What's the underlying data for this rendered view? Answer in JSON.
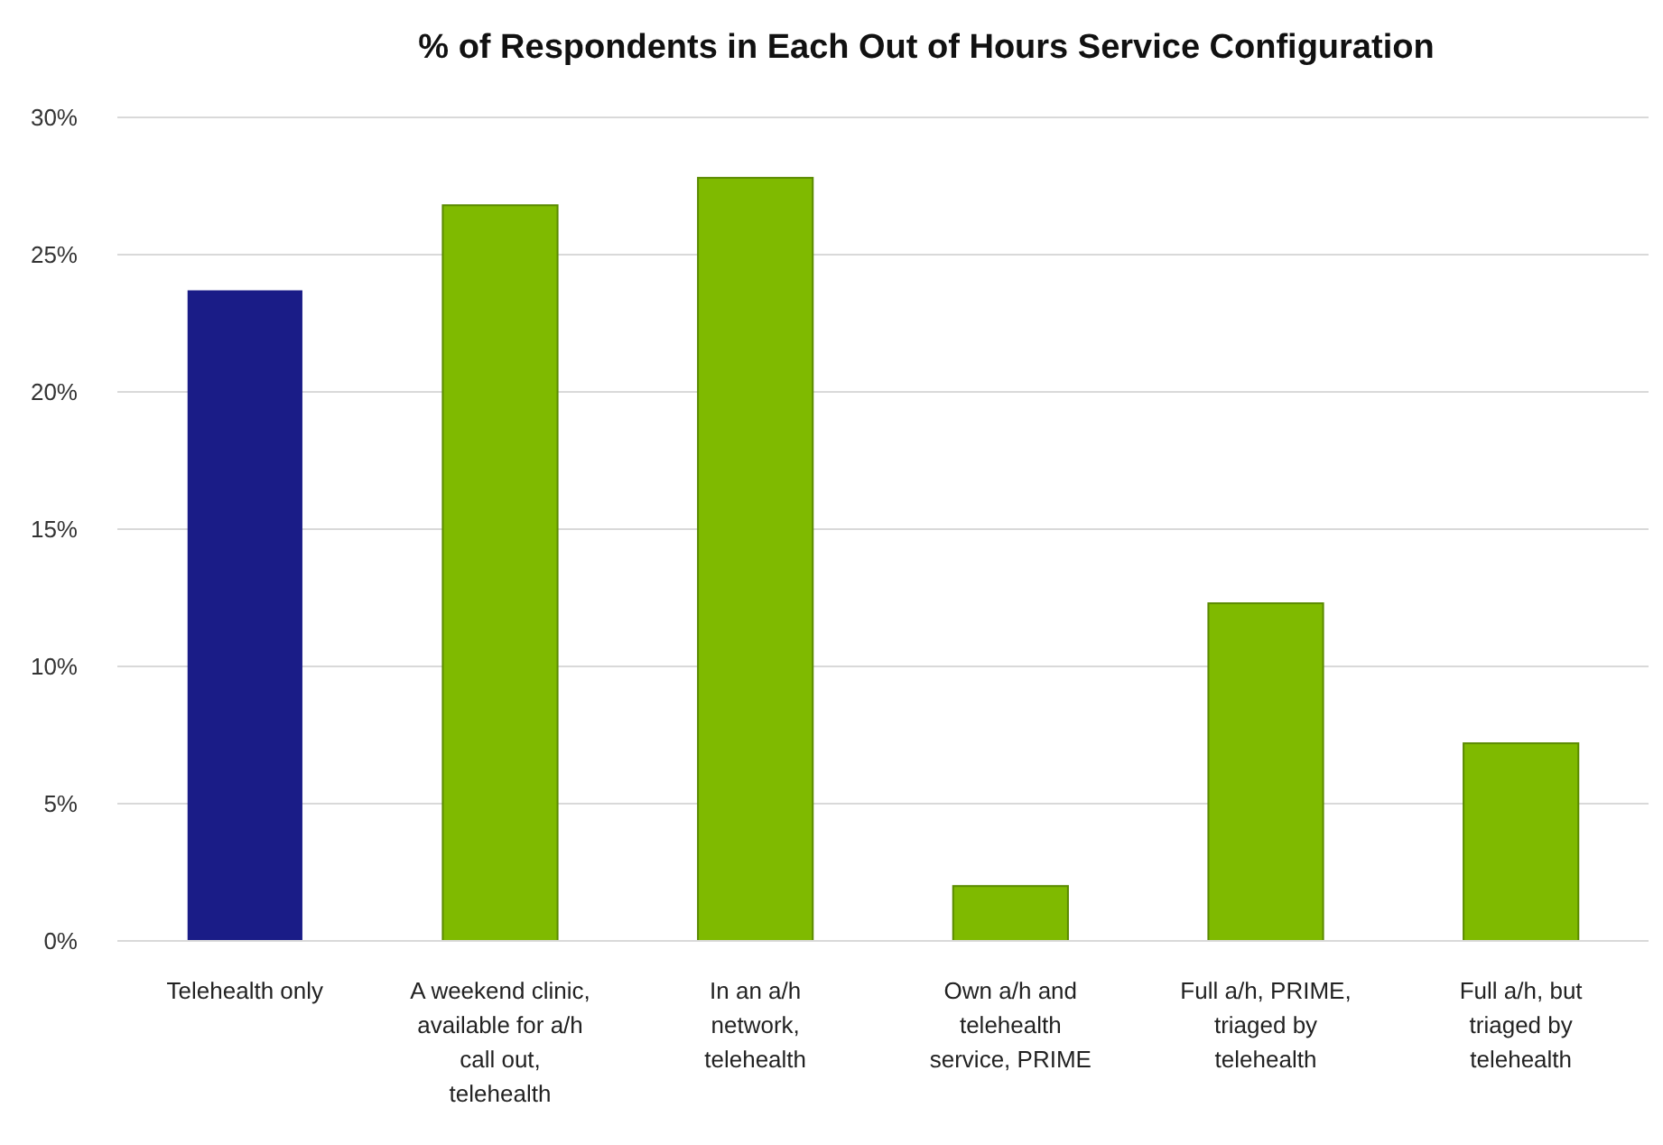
{
  "chart_data": {
    "type": "bar",
    "title": "% of Respondents in Each Out of Hours Service Configuration",
    "categories": [
      "Telehealth only",
      "A weekend clinic, available for a/h call out, telehealth",
      "In an a/h network, telehealth",
      "Own a/h and telehealth service, PRIME",
      "Full a/h, PRIME, triaged by telehealth",
      "Full a/h, but triaged by telehealth"
    ],
    "values": [
      23.7,
      26.8,
      27.8,
      2.0,
      12.3,
      7.2
    ],
    "colors": [
      "#1a1c87",
      "#7fba00",
      "#7fba00",
      "#7fba00",
      "#7fba00",
      "#7fba00"
    ],
    "ylim": [
      0,
      30
    ],
    "yticks": [
      {
        "value": 0,
        "label": "0%"
      },
      {
        "value": 5,
        "label": "5%"
      },
      {
        "value": 10,
        "label": "10%"
      },
      {
        "value": 15,
        "label": "15%"
      },
      {
        "value": 20,
        "label": "20%"
      },
      {
        "value": 25,
        "label": "25%"
      },
      {
        "value": 30,
        "label": "30%"
      }
    ],
    "grid": "y"
  }
}
